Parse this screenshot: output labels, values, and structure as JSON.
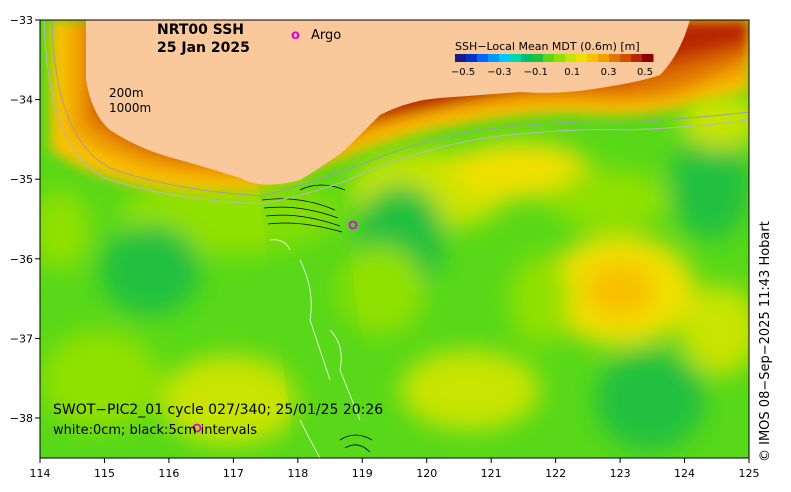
{
  "title": {
    "line1": "NRT00 SSH",
    "line2": "25 Jan 2025"
  },
  "argo_legend": {
    "symbol": "o",
    "label": "Argo"
  },
  "colorbar": {
    "title": "SSH−Local Mean MDT (0.6m) [m]",
    "ticks": [
      "−0.5",
      "−0.3",
      "−0.1",
      "0.1",
      "0.3",
      "0.5"
    ],
    "colors": [
      "#1a1a8c",
      "#0033cc",
      "#0066ff",
      "#0099ff",
      "#00c8ff",
      "#00d8b0",
      "#00c070",
      "#20c040",
      "#58d818",
      "#90e000",
      "#c8e400",
      "#f0e000",
      "#f8c000",
      "#f0a000",
      "#e07800",
      "#d05000",
      "#b82800",
      "#900000"
    ]
  },
  "isobaths": {
    "a": "200m",
    "b": "1000m"
  },
  "swath_note": {
    "line1": "SWOT−PIC2_01 cycle 027/340; 25/01/25 20:26",
    "line2": "white:0cm; black:5cm intervals"
  },
  "credit": "© IMOS 08−Sep−2025 11:43 Hobart",
  "axes": {
    "x_ticks": [
      "114",
      "115",
      "116",
      "117",
      "118",
      "119",
      "120",
      "121",
      "122",
      "123",
      "124",
      "125"
    ],
    "y_ticks": [
      "−33",
      "−34",
      "−35",
      "−36",
      "−37",
      "−38"
    ]
  },
  "colors": {
    "land": "#f9c89b",
    "argo": "#e000e0"
  }
}
